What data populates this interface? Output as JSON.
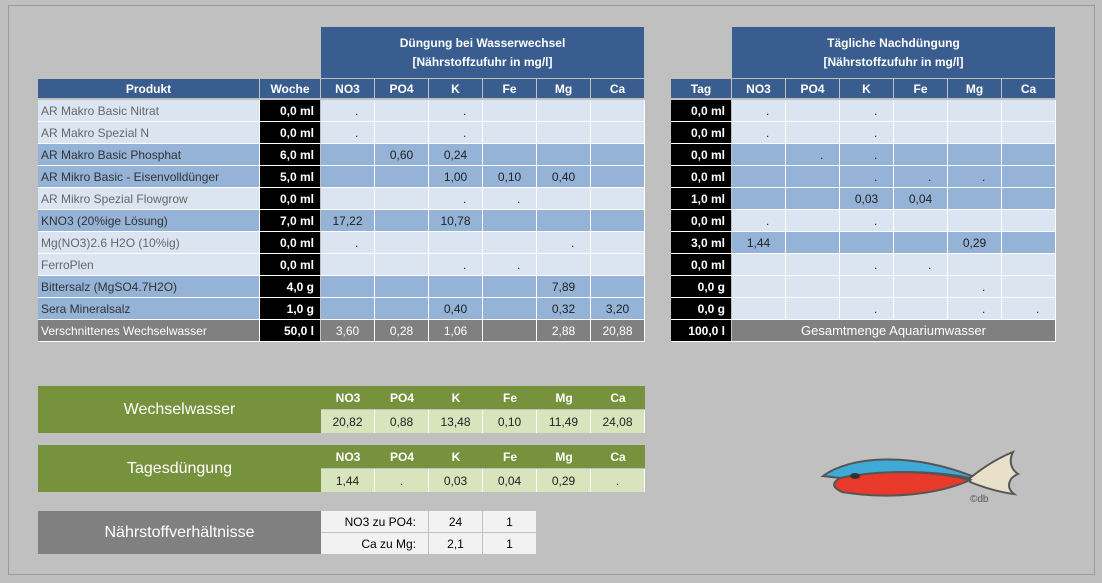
{
  "wasserwechsel_header": {
    "line1": "Düngung bei Wasserwechsel",
    "line2": "[Nährstoffzufuhr in mg/l]"
  },
  "nachduengung_header": {
    "line1": "Tägliche Nachdüngung",
    "line2": "[Nährstoffzufuhr in mg/l]"
  },
  "left_columns": [
    "Produkt",
    "Woche",
    "NO3",
    "PO4",
    "K",
    "Fe",
    "Mg",
    "Ca"
  ],
  "right_columns": [
    "Tag",
    "NO3",
    "PO4",
    "K",
    "Fe",
    "Mg",
    "Ca"
  ],
  "products": [
    {
      "name": "AR Makro Basic Nitrat",
      "woche": "0,0 ml",
      "left": [
        ".",
        "",
        ".",
        "",
        "",
        ""
      ],
      "tag": "0,0 ml",
      "right": [
        ".",
        "",
        ".",
        "",
        "",
        ""
      ],
      "shade": "lt",
      "grey": true
    },
    {
      "name": "AR Makro Spezial N",
      "woche": "0,0 ml",
      "left": [
        ".",
        "",
        ".",
        "",
        "",
        ""
      ],
      "tag": "0,0 ml",
      "right": [
        ".",
        "",
        ".",
        "",
        "",
        ""
      ],
      "shade": "lt",
      "grey": true
    },
    {
      "name": "AR Makro Basic Phosphat",
      "woche": "6,0 ml",
      "left": [
        "",
        "0,60",
        "0,24",
        "",
        "",
        ""
      ],
      "tag": "0,0 ml",
      "right": [
        "",
        ".",
        ".",
        "",
        "",
        ""
      ],
      "shade": "dk",
      "grey": false
    },
    {
      "name": "AR Mikro Basic - Eisenvolldünger",
      "woche": "5,0 ml",
      "left": [
        "",
        "",
        "1,00",
        "0,10",
        "0,40",
        ""
      ],
      "tag": "0,0 ml",
      "right": [
        "",
        "",
        ".",
        ".",
        ".",
        ""
      ],
      "shade": "dk",
      "grey": false
    },
    {
      "name": "AR Mikro Spezial Flowgrow",
      "woche": "0,0 ml",
      "left": [
        "",
        "",
        ".",
        ".",
        "",
        ""
      ],
      "tag": "1,0 ml",
      "right": [
        "",
        "",
        "0,03",
        "0,04",
        "",
        ""
      ],
      "shade": "lt",
      "grey": true,
      "right_shade": "dk"
    },
    {
      "name": "KNO3 (20%ige Lösung)",
      "woche": "7,0 ml",
      "left": [
        "17,22",
        "",
        "10,78",
        "",
        "",
        ""
      ],
      "tag": "0,0 ml",
      "right": [
        ".",
        "",
        ".",
        "",
        "",
        ""
      ],
      "shade": "dk",
      "grey": false,
      "right_shade": "lt"
    },
    {
      "name": "Mg(NO3)2.6 H2O (10%ig)",
      "woche": "0,0 ml",
      "left": [
        ".",
        "",
        "",
        "",
        ".",
        ""
      ],
      "tag": "3,0 ml",
      "right": [
        "1,44",
        "",
        "",
        "",
        "0,29",
        ""
      ],
      "shade": "lt",
      "grey": true,
      "right_shade": "dk"
    },
    {
      "name": "FerroPlen",
      "woche": "0,0 ml",
      "left": [
        "",
        "",
        ".",
        ".",
        "",
        ""
      ],
      "tag": "0,0 ml",
      "right": [
        "",
        "",
        ".",
        ".",
        "",
        ""
      ],
      "shade": "lt",
      "grey": true
    },
    {
      "name": "Bittersalz (MgSO4.7H2O)",
      "woche": "4,0 g",
      "left": [
        "",
        "",
        "",
        "",
        "7,89",
        ""
      ],
      "tag": "0,0 g",
      "right": [
        "",
        "",
        "",
        "",
        ".",
        ""
      ],
      "shade": "dk",
      "grey": false,
      "right_shade": "lt"
    },
    {
      "name": "Sera Mineralsalz",
      "woche": "1,0 g",
      "left": [
        "",
        "",
        "0,40",
        "",
        "0,32",
        "3,20"
      ],
      "tag": "0,0 g",
      "right": [
        "",
        "",
        ".",
        "",
        ".",
        "."
      ],
      "shade": "dk",
      "grey": false,
      "right_shade": "lt"
    }
  ],
  "total_row": {
    "name": "Verschnittenes Wechselwasser",
    "woche": "50,0 l",
    "left": [
      "3,60",
      "0,28",
      "1,06",
      "",
      "2,88",
      "20,88"
    ],
    "tag": "100,0 l",
    "right_label": "Gesamtmenge Aquariumwasser"
  },
  "wechselwasser": {
    "title": "Wechselwasser",
    "columns": [
      "NO3",
      "PO4",
      "K",
      "Fe",
      "Mg",
      "Ca"
    ],
    "values": [
      "20,82",
      "0,88",
      "13,48",
      "0,10",
      "11,49",
      "24,08"
    ]
  },
  "tagesduengung": {
    "title": "Tagesdüngung",
    "columns": [
      "NO3",
      "PO4",
      "K",
      "Fe",
      "Mg",
      "Ca"
    ],
    "values": [
      "1,44",
      ".",
      "0,03",
      "0,04",
      "0,29",
      "."
    ]
  },
  "verhaeltnisse": {
    "title": "Nährstoffverhältnisse",
    "rows": [
      {
        "label": "NO3 zu PO4:",
        "a": "24",
        "b": "1"
      },
      {
        "label": "Ca zu Mg:",
        "a": "2,1",
        "b": "1"
      }
    ]
  },
  "logo": {
    "caption": "©db",
    "colors": {
      "blue": "#3fa9d8",
      "red": "#e8392b",
      "tail": "#e8e0c8"
    }
  }
}
